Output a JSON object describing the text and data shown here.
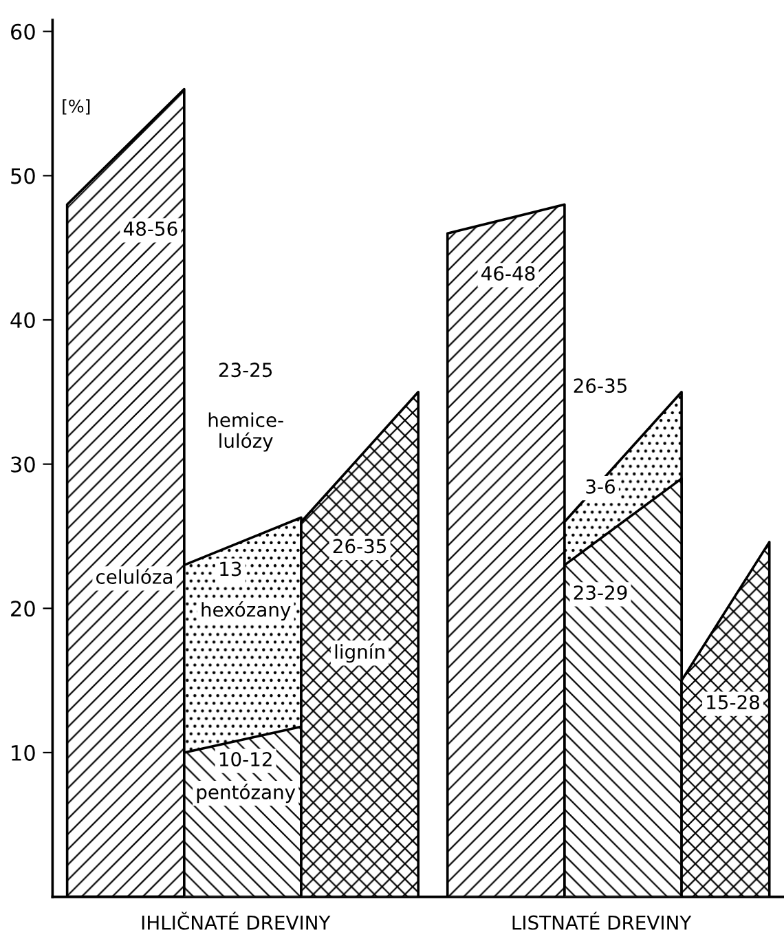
{
  "chart_data": {
    "type": "area",
    "ylabel": "[%]",
    "ylim": [
      0,
      60.8
    ],
    "yticks": [
      10,
      20,
      30,
      40,
      50,
      60
    ],
    "tick_labels": "y",
    "grid": false,
    "legend": false,
    "categories": [
      null,
      null,
      null,
      null,
      null,
      null,
      null,
      null,
      null,
      null,
      null,
      null,
      null,
      null,
      null,
      null,
      null,
      null,
      null,
      null,
      null,
      null,
      null,
      null,
      null
    ],
    "series": [
      {
        "color": "#000000",
        "values": [
          48,
          null,
          null,
          null,
          56,
          null,
          null,
          null,
          null,
          null,
          null,
          null,
          null,
          null,
          null,
          null,
          null,
          null,
          null,
          null,
          null,
          null,
          null,
          null,
          null
        ]
      },
      {
        "color": "#000000",
        "values": [
          null,
          null,
          null,
          null,
          23,
          null,
          null,
          null,
          26.3,
          null,
          null,
          null,
          null,
          null,
          null,
          null,
          null,
          null,
          null,
          null,
          null,
          null,
          null,
          null,
          null
        ]
      },
      {
        "color": "#000000",
        "values": [
          null,
          null,
          null,
          null,
          10,
          null,
          null,
          null,
          11.8,
          null,
          null,
          null,
          null,
          null,
          null,
          null,
          null,
          null,
          null,
          null,
          null,
          null,
          null,
          null,
          null
        ]
      },
      {
        "color": "#000000",
        "values": [
          null,
          null,
          null,
          null,
          null,
          null,
          null,
          null,
          26,
          null,
          null,
          null,
          35,
          null,
          null,
          null,
          null,
          null,
          null,
          null,
          null,
          null,
          null,
          null,
          null
        ]
      },
      {
        "color": "#000000",
        "values": [
          null,
          null,
          null,
          null,
          null,
          null,
          null,
          null,
          null,
          null,
          null,
          null,
          null,
          46,
          null,
          null,
          null,
          48,
          null,
          null,
          null,
          null,
          null,
          null,
          null
        ]
      },
      {
        "color": "#000000",
        "values": [
          null,
          null,
          null,
          null,
          null,
          null,
          null,
          null,
          null,
          null,
          null,
          null,
          null,
          null,
          null,
          null,
          null,
          26,
          null,
          null,
          null,
          35,
          null,
          null,
          null
        ]
      },
      {
        "color": "#000000",
        "values": [
          null,
          null,
          null,
          null,
          null,
          null,
          null,
          null,
          null,
          null,
          null,
          null,
          null,
          null,
          null,
          null,
          null,
          23,
          null,
          null,
          null,
          29,
          null,
          null,
          null
        ]
      },
      {
        "color": "#000000",
        "values": [
          null,
          null,
          null,
          null,
          null,
          null,
          null,
          null,
          null,
          null,
          null,
          null,
          null,
          null,
          null,
          null,
          null,
          null,
          null,
          null,
          null,
          15,
          null,
          null,
          24.6
        ]
      }
    ],
    "annotations": [
      "48-56",
      "celulóza",
      "23-25",
      "hemice-\nlulózy",
      "13",
      "hexózany",
      "10-12",
      "pentózany",
      "26-35",
      "lignín",
      "46-48",
      "26-35",
      "3-6",
      "23-29",
      "15-28",
      "IHLIČNATÉ DREVINY",
      "LISTNATÉ DREVINY"
    ]
  }
}
